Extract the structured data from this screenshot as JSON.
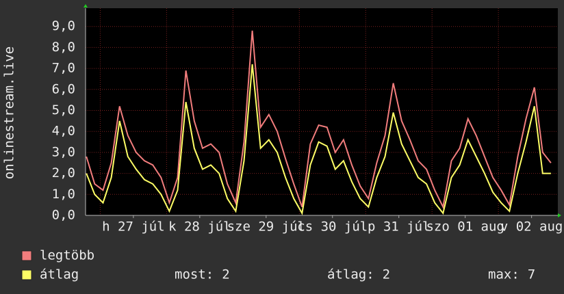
{
  "chart_data": {
    "type": "line",
    "y_label": "onlinestream.live",
    "x": [
      -5,
      -2,
      1,
      4,
      7,
      10,
      13,
      16,
      19,
      22,
      25,
      28,
      31,
      34,
      37,
      40,
      43,
      46,
      49,
      52,
      55,
      58,
      61,
      64,
      67,
      70,
      73,
      76,
      79,
      82,
      85,
      88,
      91,
      94,
      97,
      100,
      103,
      106,
      109,
      112,
      115,
      118,
      121,
      124,
      127,
      130,
      133,
      136,
      139,
      142,
      145,
      148,
      151,
      154,
      157,
      160,
      163
    ],
    "series": [
      {
        "name": "legtöbb",
        "color": "#f27d7d",
        "values": [
          2.8,
          1.5,
          1.2,
          2.5,
          5.2,
          3.8,
          3.0,
          2.6,
          2.4,
          1.8,
          0.6,
          1.8,
          6.9,
          4.5,
          3.2,
          3.4,
          3.0,
          1.5,
          0.6,
          3.5,
          8.8,
          4.2,
          4.8,
          4.0,
          2.7,
          1.5,
          0.4,
          3.4,
          4.3,
          4.2,
          3.0,
          3.6,
          2.4,
          1.4,
          0.8,
          2.5,
          3.8,
          6.3,
          4.5,
          3.6,
          2.6,
          2.2,
          1.2,
          0.4,
          2.6,
          3.2,
          4.6,
          3.8,
          2.8,
          1.8,
          1.2,
          0.5,
          2.8,
          4.6,
          6.1,
          3.0,
          2.5
        ]
      },
      {
        "name": "átlag",
        "color": "#ffff66",
        "values": [
          2.0,
          1.0,
          0.6,
          1.8,
          4.5,
          2.8,
          2.2,
          1.7,
          1.5,
          1.0,
          0.2,
          1.2,
          5.4,
          3.2,
          2.2,
          2.4,
          2.0,
          0.8,
          0.2,
          2.6,
          7.2,
          3.2,
          3.6,
          3.0,
          1.8,
          0.8,
          0.1,
          2.4,
          3.5,
          3.3,
          2.2,
          2.6,
          1.6,
          0.8,
          0.4,
          1.8,
          2.8,
          4.9,
          3.4,
          2.6,
          1.8,
          1.5,
          0.6,
          0.1,
          1.8,
          2.4,
          3.6,
          2.8,
          2.0,
          1.1,
          0.6,
          0.2,
          2.0,
          3.5,
          5.2,
          2.0,
          2.0
        ]
      }
    ],
    "xlim": [
      -5.3,
      165.5
    ],
    "xticks": [
      {
        "value": 12,
        "label": "h 27 júl"
      },
      {
        "value": 36,
        "label": "k 28 júl"
      },
      {
        "value": 60,
        "label": "sze 29 júl"
      },
      {
        "value": 84,
        "label": "cs 30 júl"
      },
      {
        "value": 108,
        "label": "p 31 júl"
      },
      {
        "value": 132,
        "label": "szo 01 aug"
      },
      {
        "value": 156,
        "label": "v 02 aug"
      }
    ],
    "xgrid": [
      0,
      24,
      48,
      72,
      96,
      120,
      144
    ],
    "ylim": [
      0,
      9.87
    ],
    "yticks": [
      {
        "value": 0,
        "label": "0,0"
      },
      {
        "value": 1,
        "label": "1,0"
      },
      {
        "value": 2,
        "label": "2,0"
      },
      {
        "value": 3,
        "label": "3,0"
      },
      {
        "value": 4,
        "label": "4,0"
      },
      {
        "value": 5,
        "label": "5,0"
      },
      {
        "value": 6,
        "label": "6,0"
      },
      {
        "value": 7,
        "label": "7,0"
      },
      {
        "value": 8,
        "label": "8,0"
      },
      {
        "value": 9,
        "label": "9,0"
      }
    ],
    "grid": true,
    "stats": [
      {
        "label": "most:",
        "value": 2
      },
      {
        "label": "átlag:",
        "value": 2
      },
      {
        "label": "max:",
        "value": 7
      }
    ]
  }
}
